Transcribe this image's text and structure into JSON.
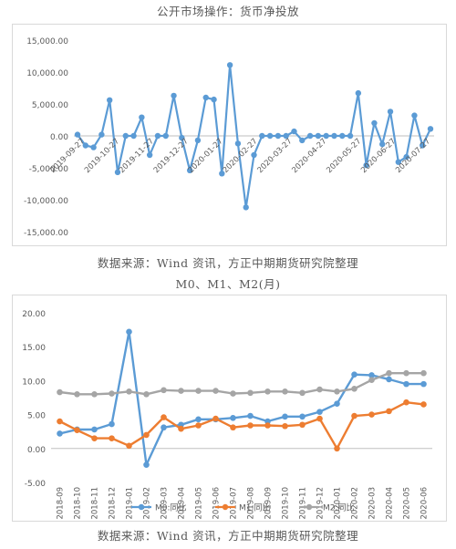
{
  "chart1_title": "公开市场操作：货币净投放",
  "chart1_source": "数据来源：Wind 资讯，方正中期期货研究院整理",
  "chart2_title": "M0、M1、M2(月)",
  "chart2_source": "数据来源：Wind 资讯，方正中期期货研究院整理",
  "chart_data": [
    {
      "type": "line",
      "title": "公开市场操作：货币净投放",
      "xlabel": "",
      "ylabel": "",
      "ylim": [
        -15000,
        15000
      ],
      "y_ticks": [
        "15,000.00",
        "10,000.00",
        "5,000.00",
        "0.00",
        "-5,000.00",
        "-10,000.00",
        "-15,000.00"
      ],
      "y_tick_values": [
        15000,
        10000,
        5000,
        0,
        -5000,
        -10000,
        -15000
      ],
      "x_tick_labels": [
        "2019-09-27",
        "2019-10-27",
        "2019-11-27",
        "2019-12-27",
        "2020-01-27",
        "2020-02-27",
        "2020-03-27",
        "2020-04-27",
        "2020-05-27",
        "2020-06-27",
        "2020-07-27"
      ],
      "color": "#5b9bd5",
      "grid": false,
      "series": [
        {
          "values": [
            200,
            -1500,
            -1800,
            200,
            5600,
            -5700,
            0,
            0,
            2900,
            -3000,
            0,
            0,
            6300,
            -300,
            -5400,
            -700,
            6000,
            5700,
            -5900,
            11100,
            -1200,
            -11200,
            -3000,
            0,
            0,
            0,
            0,
            700,
            -700,
            0,
            0,
            0,
            0,
            0,
            0,
            6700,
            -4600,
            2000,
            -1300,
            3800,
            -4100,
            -3300,
            3200,
            -1500,
            1100
          ]
        }
      ]
    },
    {
      "type": "line",
      "title": "M0、M1、M2(月)",
      "xlabel": "",
      "ylabel": "",
      "ylim": [
        -5,
        20
      ],
      "y_ticks": [
        "20.00",
        "15.00",
        "10.00",
        "5.00",
        "0.00",
        "-5.00"
      ],
      "y_tick_values": [
        20,
        15,
        10,
        5,
        0,
        -5
      ],
      "legend": "bottom",
      "grid": false,
      "categories": [
        "2018-09",
        "2018-10",
        "2018-11",
        "2018-12",
        "2019-01",
        "2019-02",
        "2019-03",
        "2019-04",
        "2019-05",
        "2019-06",
        "2019-07",
        "2019-08",
        "2019-09",
        "2019-10",
        "2019-11",
        "2019-12",
        "2020-01",
        "2020-02",
        "2020-03",
        "2020-04",
        "2020-05",
        "2020-06"
      ],
      "series": [
        {
          "name": "M0:同比",
          "color": "#5b9bd5",
          "values": [
            2.2,
            2.8,
            2.8,
            3.6,
            17.2,
            -2.4,
            3.1,
            3.5,
            4.3,
            4.3,
            4.5,
            4.8,
            4.0,
            4.7,
            4.7,
            5.4,
            6.6,
            10.9,
            10.8,
            10.2,
            9.5,
            9.5
          ]
        },
        {
          "name": "M1:同比",
          "color": "#ed7d31",
          "values": [
            4.0,
            2.7,
            1.5,
            1.5,
            0.4,
            2.0,
            4.6,
            2.9,
            3.4,
            4.4,
            3.1,
            3.4,
            3.4,
            3.3,
            3.5,
            4.4,
            0.0,
            4.8,
            5.0,
            5.5,
            6.8,
            6.5
          ]
        },
        {
          "name": "M2:同比",
          "color": "#a5a5a5",
          "values": [
            8.3,
            8.0,
            8.0,
            8.1,
            8.4,
            8.0,
            8.6,
            8.5,
            8.5,
            8.5,
            8.1,
            8.2,
            8.4,
            8.4,
            8.2,
            8.7,
            8.4,
            8.8,
            10.1,
            11.1,
            11.1,
            11.1
          ]
        }
      ]
    }
  ]
}
